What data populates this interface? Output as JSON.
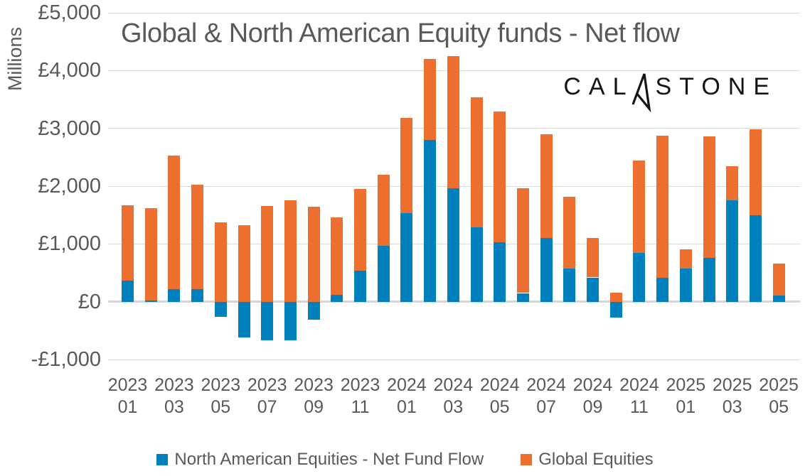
{
  "title": "Global & North American Equity funds - Net flow",
  "y_axis": {
    "label": "Millions",
    "ticks": [
      {
        "value": 5000,
        "label": "£5,000"
      },
      {
        "value": 4000,
        "label": "£4,000"
      },
      {
        "value": 3000,
        "label": "£3,000"
      },
      {
        "value": 2000,
        "label": "£2,000"
      },
      {
        "value": 1000,
        "label": "£1,000"
      },
      {
        "value": 0,
        "label": "£0"
      },
      {
        "value": -1000,
        "label": "-£1,000"
      }
    ]
  },
  "x_axis": {
    "label_every": 2
  },
  "logo": {
    "name": "Calastone",
    "left": "CAL",
    "right": "STONE"
  },
  "legend": [
    {
      "label": "North American Equities - Net Fund Flow",
      "color": "#0080BC"
    },
    {
      "label": "Global Equities",
      "color": "#EC6F2F"
    }
  ],
  "colors": {
    "north_american": "#0080BC",
    "global": "#EC6F2F",
    "gridline": "#DBDBDB",
    "zero_line": "#D5D5D5",
    "text": "#595959",
    "logo": "#141414"
  },
  "chart_data": {
    "type": "bar",
    "stacked": true,
    "title": "Global & North American Equity funds - Net flow",
    "ylabel": "Millions",
    "ylim": [
      -1000,
      5000
    ],
    "grid": true,
    "legend_position": "bottom",
    "categories": [
      "2023 01",
      "2023 02",
      "2023 03",
      "2023 04",
      "2023 05",
      "2023 06",
      "2023 07",
      "2023 08",
      "2023 09",
      "2023 10",
      "2023 11",
      "2023 12",
      "2024 01",
      "2024 02",
      "2024 03",
      "2024 04",
      "2024 05",
      "2024 06",
      "2024 07",
      "2024 08",
      "2024 09",
      "2024 10",
      "2024 11",
      "2024 12",
      "2025 01",
      "2025 02",
      "2025 03",
      "2025 04",
      "2025 05"
    ],
    "series": [
      {
        "name": "North American Equities - Net Fund Flow",
        "color": "#0080BC",
        "values": [
          360,
          20,
          220,
          220,
          -260,
          -620,
          -670,
          -670,
          -310,
          120,
          540,
          970,
          1530,
          2800,
          1970,
          1290,
          1030,
          150,
          1100,
          580,
          420,
          -280,
          840,
          420,
          570,
          760,
          1750,
          1500,
          110
        ]
      },
      {
        "name": "Global Equities",
        "color": "#EC6F2F",
        "values": [
          1310,
          1600,
          2310,
          1800,
          1380,
          1330,
          1660,
          1750,
          1650,
          1340,
          1410,
          1230,
          1650,
          1400,
          2280,
          2250,
          2260,
          1810,
          1800,
          1240,
          680,
          160,
          1600,
          2450,
          340,
          2100,
          590,
          1480,
          550
        ]
      }
    ]
  }
}
